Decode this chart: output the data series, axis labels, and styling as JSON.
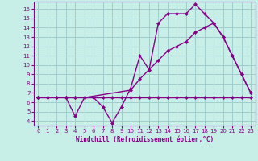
{
  "xlabel": "Windchill (Refroidissement éolien,°C)",
  "background_color": "#c8eee8",
  "grid_color": "#a0cccc",
  "line_color": "#880088",
  "xlim": [
    -0.5,
    23.5
  ],
  "ylim": [
    3.5,
    16.8
  ],
  "xticks": [
    0,
    1,
    2,
    3,
    4,
    5,
    6,
    7,
    8,
    9,
    10,
    11,
    12,
    13,
    14,
    15,
    16,
    17,
    18,
    19,
    20,
    21,
    22,
    23
  ],
  "yticks": [
    4,
    5,
    6,
    7,
    8,
    9,
    10,
    11,
    12,
    13,
    14,
    15,
    16
  ],
  "series1_x": [
    0,
    1,
    2,
    3,
    4,
    5,
    6,
    7,
    8,
    9,
    10,
    11,
    12,
    13,
    14,
    15,
    16,
    17,
    18,
    19,
    20,
    21,
    22,
    23
  ],
  "series1_y": [
    6.5,
    6.5,
    6.5,
    6.5,
    6.5,
    6.5,
    6.5,
    6.5,
    6.5,
    6.5,
    6.5,
    6.5,
    6.5,
    6.5,
    6.5,
    6.5,
    6.5,
    6.5,
    6.5,
    6.5,
    6.5,
    6.5,
    6.5,
    6.5
  ],
  "series2_x": [
    0,
    3,
    4,
    5,
    10,
    11,
    12,
    13,
    14,
    15,
    16,
    17,
    18,
    19,
    20,
    21,
    22,
    23
  ],
  "series2_y": [
    6.5,
    6.5,
    6.5,
    6.5,
    7.3,
    8.5,
    9.5,
    10.5,
    11.5,
    12.0,
    12.5,
    13.5,
    14.0,
    14.5,
    13.0,
    11.0,
    9.0,
    7.0
  ],
  "series3_x": [
    0,
    1,
    2,
    3,
    4,
    5,
    6,
    7,
    8,
    9,
    10,
    11,
    12,
    13,
    14,
    15,
    16,
    17,
    18,
    19,
    20,
    21,
    22,
    23
  ],
  "series3_y": [
    6.5,
    6.5,
    6.5,
    6.5,
    4.5,
    6.5,
    6.5,
    5.5,
    3.8,
    5.5,
    7.5,
    11.0,
    9.5,
    14.5,
    15.5,
    15.5,
    15.5,
    16.5,
    15.5,
    14.5,
    13.0,
    11.0,
    9.0,
    7.0
  ],
  "marker": "D",
  "markersize": 2.5,
  "linewidth": 1.0
}
